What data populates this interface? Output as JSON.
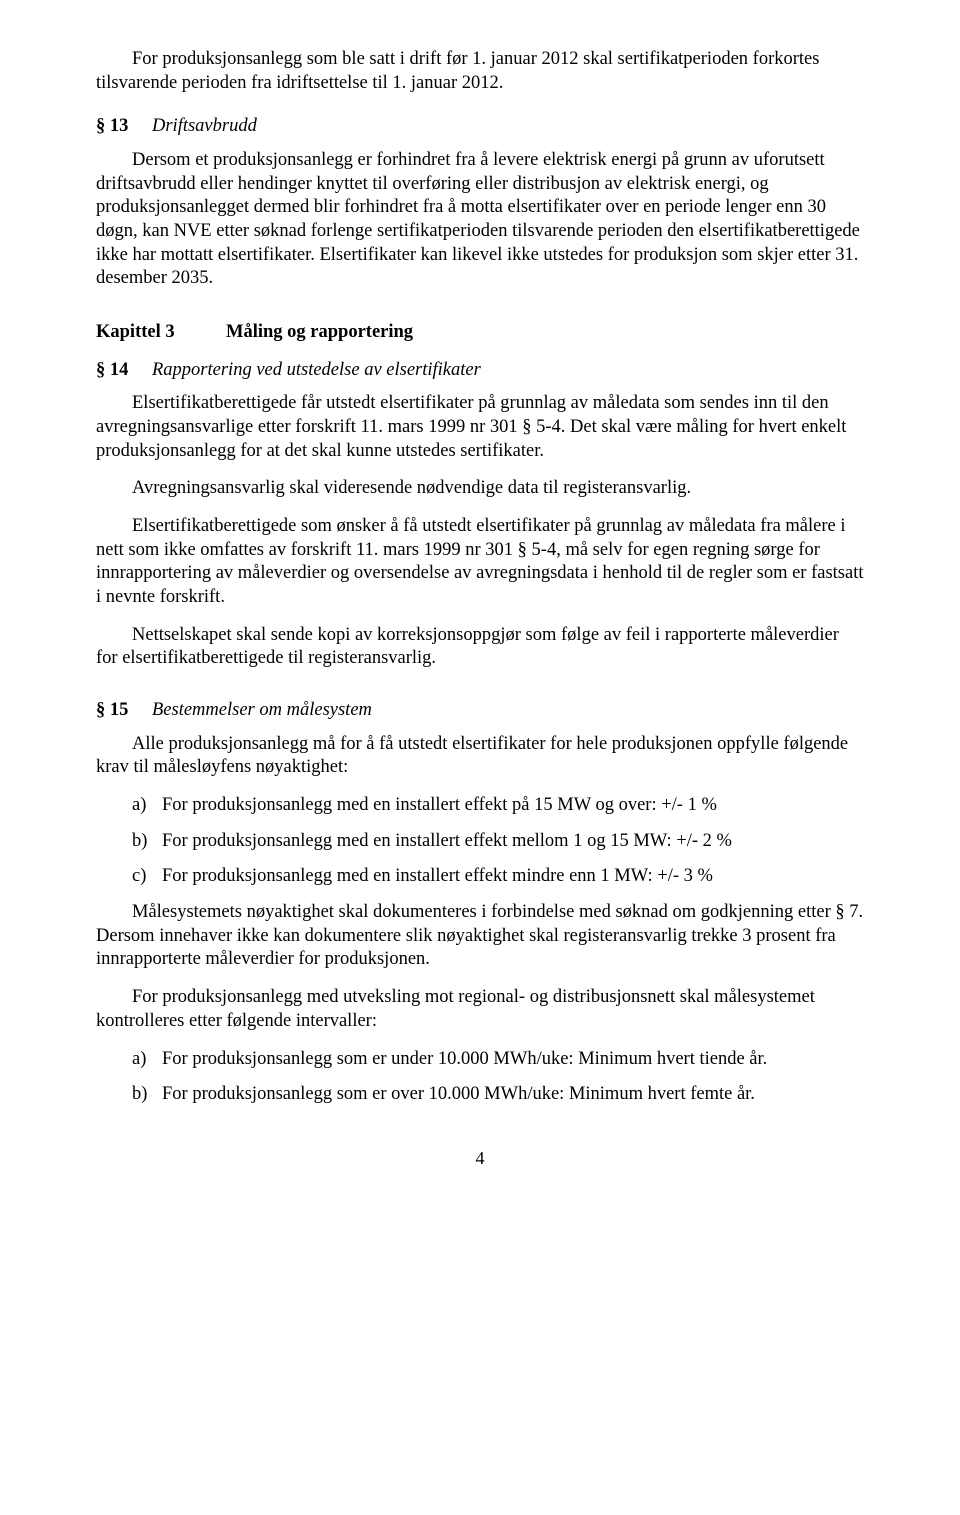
{
  "intro": {
    "p1": "For produksjonsanlegg som ble satt i drift før 1. januar 2012 skal sertifikatperioden forkortes tilsvarende perioden fra idriftsettelse til 1. januar 2012."
  },
  "s13": {
    "label": "§ 13",
    "title": "Driftsavbrudd",
    "p1": "Dersom et produksjonsanlegg er forhindret fra å levere elektrisk energi på grunn av uforutsett driftsavbrudd eller hendinger knyttet til overføring eller distribusjon av elektrisk energi, og produksjonsanlegget dermed blir forhindret fra å motta elsertifikater over en periode lenger enn 30 døgn, kan NVE etter søknad forlenge sertifikatperioden tilsvarende perioden den elsertifikatberettigede ikke har mottatt elsertifikater. Elsertifikater kan likevel ikke utstedes for produksjon som skjer etter 31. desember 2035."
  },
  "kap3": {
    "label": "Kapittel 3",
    "title": "Måling og rapportering"
  },
  "s14": {
    "label": "§ 14",
    "title": "Rapportering ved utstedelse av elsertifikater",
    "p1": "Elsertifikatberettigede får utstedt elsertifikater på grunnlag av måledata som sendes inn til den avregningsansvarlige etter forskrift 11. mars 1999 nr 301 § 5-4. Det skal være måling for hvert enkelt produksjonsanlegg for at det skal kunne utstedes sertifikater.",
    "p2": "Avregningsansvarlig skal videresende nødvendige data til registeransvarlig.",
    "p3": "Elsertifikatberettigede som ønsker å få utstedt elsertifikater på grunnlag av måledata fra målere i nett som ikke omfattes av forskrift 11. mars 1999 nr 301 § 5-4, må selv for egen regning sørge for innrapportering av måleverdier og oversendelse av avregningsdata i henhold til de regler som er fastsatt i nevnte forskrift.",
    "p4": "Nettselskapet skal sende kopi av korreksjonsoppgjør som følge av feil i rapporterte måleverdier for elsertifikatberettigede til registeransvarlig."
  },
  "s15": {
    "label": "§ 15",
    "title": "Bestemmelser om målesystem",
    "p1": "Alle produksjonsanlegg må for å få utstedt elsertifikater for hele produksjonen oppfylle følgende krav til målesløyfens nøyaktighet:",
    "list1": [
      {
        "m": "a)",
        "t": "For produksjonsanlegg med en installert effekt på 15 MW og over: +/- 1 %"
      },
      {
        "m": "b)",
        "t": "For produksjonsanlegg med en installert effekt mellom 1 og 15 MW: +/- 2 %"
      },
      {
        "m": "c)",
        "t": "For produksjonsanlegg med en installert effekt mindre enn 1 MW: +/- 3 %"
      }
    ],
    "p2": "Målesystemets nøyaktighet skal dokumenteres i forbindelse med søknad om godkjenning etter § 7. Dersom innehaver ikke kan dokumentere slik nøyaktighet skal registeransvarlig trekke 3 prosent fra innrapporterte måleverdier for produksjonen.",
    "p3": "For produksjonsanlegg med utveksling mot regional- og distribusjonsnett skal målesystemet kontrolleres etter følgende intervaller:",
    "list2": [
      {
        "m": "a)",
        "t": "For produksjonsanlegg som er under 10.000 MWh/uke: Minimum hvert tiende år."
      },
      {
        "m": "b)",
        "t": "For produksjonsanlegg som er over 10.000 MWh/uke: Minimum hvert femte år."
      }
    ]
  },
  "pageNumber": "4"
}
